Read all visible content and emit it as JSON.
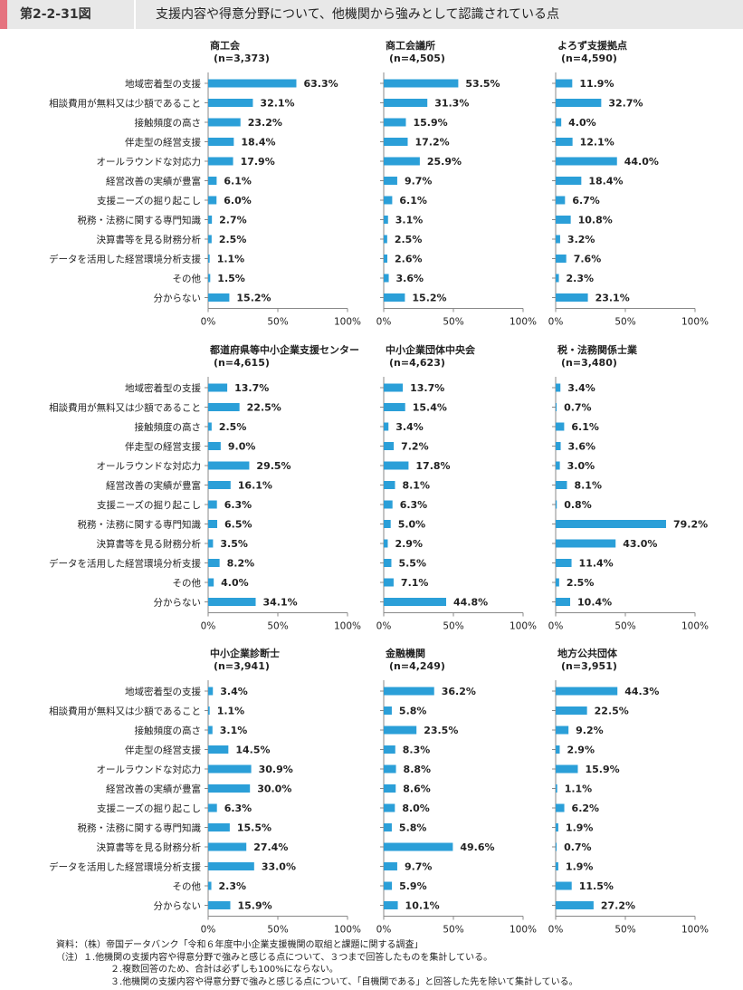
{
  "figure": {
    "number": "第2-2-31図",
    "title": "支援内容や得意分野について、他機関から強みとして認識されている点",
    "accent_color": "#e5737f",
    "bar_color": "#2b9fd8"
  },
  "categories": [
    "地域密着型の支援",
    "相談費用が無料又は少額であること",
    "接触頻度の高さ",
    "伴走型の経営支援",
    "オールラウンドな対応力",
    "経営改善の実績が豊富",
    "支援ニーズの掘り起こし",
    "税務・法務に関する専門知識",
    "決算書等を見る財務分析",
    "データを活用した経営環境分析支援",
    "その他",
    "分からない"
  ],
  "chart_data": [
    {
      "type": "bar",
      "orientation": "horizontal",
      "title": "商工会",
      "n": "(n=3,373)",
      "values": [
        63.3,
        32.1,
        23.2,
        18.4,
        17.9,
        6.1,
        6.0,
        2.7,
        2.5,
        1.1,
        1.5,
        15.2
      ],
      "labels": [
        "63.3%",
        "32.1%",
        "23.2%",
        "18.4%",
        "17.9%",
        "6.1%",
        "6.0%",
        "2.7%",
        "2.5%",
        "1.1%",
        "1.5%",
        "15.2%"
      ],
      "xlim": [
        0,
        100
      ],
      "ticks": [
        "0%",
        "50%",
        "100%"
      ]
    },
    {
      "type": "bar",
      "orientation": "horizontal",
      "title": "商工会議所",
      "n": "(n=4,505)",
      "values": [
        53.5,
        31.3,
        15.9,
        17.2,
        25.9,
        9.7,
        6.1,
        3.1,
        2.5,
        2.6,
        3.6,
        15.2
      ],
      "labels": [
        "53.5%",
        "31.3%",
        "15.9%",
        "17.2%",
        "25.9%",
        "9.7%",
        "6.1%",
        "3.1%",
        "2.5%",
        "2.6%",
        "3.6%",
        "15.2%"
      ],
      "xlim": [
        0,
        100
      ],
      "ticks": [
        "0%",
        "50%",
        "100%"
      ]
    },
    {
      "type": "bar",
      "orientation": "horizontal",
      "title": "よろず支援拠点",
      "n": "(n=4,590)",
      "values": [
        11.9,
        32.7,
        4.0,
        12.1,
        44.0,
        18.4,
        6.7,
        10.8,
        3.2,
        7.6,
        2.3,
        23.1
      ],
      "labels": [
        "11.9%",
        "32.7%",
        "4.0%",
        "12.1%",
        "44.0%",
        "18.4%",
        "6.7%",
        "10.8%",
        "3.2%",
        "7.6%",
        "2.3%",
        "23.1%"
      ],
      "xlim": [
        0,
        100
      ],
      "ticks": [
        "0%",
        "50%",
        "100%"
      ]
    },
    {
      "type": "bar",
      "orientation": "horizontal",
      "title": "都道府県等中小企業支援センター",
      "n": "(n=4,615)",
      "values": [
        13.7,
        22.5,
        2.5,
        9.0,
        29.5,
        16.1,
        6.3,
        6.5,
        3.5,
        8.2,
        4.0,
        34.1
      ],
      "labels": [
        "13.7%",
        "22.5%",
        "2.5%",
        "9.0%",
        "29.5%",
        "16.1%",
        "6.3%",
        "6.5%",
        "3.5%",
        "8.2%",
        "4.0%",
        "34.1%"
      ],
      "xlim": [
        0,
        100
      ],
      "ticks": [
        "0%",
        "50%",
        "100%"
      ]
    },
    {
      "type": "bar",
      "orientation": "horizontal",
      "title": "中小企業団体中央会",
      "n": "(n=4,623)",
      "values": [
        13.7,
        15.4,
        3.4,
        7.2,
        17.8,
        8.1,
        6.3,
        5.0,
        2.9,
        5.5,
        7.1,
        44.8
      ],
      "labels": [
        "13.7%",
        "15.4%",
        "3.4%",
        "7.2%",
        "17.8%",
        "8.1%",
        "6.3%",
        "5.0%",
        "2.9%",
        "5.5%",
        "7.1%",
        "44.8%"
      ],
      "xlim": [
        0,
        100
      ],
      "ticks": [
        "0%",
        "50%",
        "100%"
      ]
    },
    {
      "type": "bar",
      "orientation": "horizontal",
      "title": "税・法務関係士業",
      "n": "(n=3,480)",
      "values": [
        3.4,
        0.7,
        6.1,
        3.6,
        3.0,
        8.1,
        0.8,
        79.2,
        43.0,
        11.4,
        2.5,
        10.4
      ],
      "labels": [
        "3.4%",
        "0.7%",
        "6.1%",
        "3.6%",
        "3.0%",
        "8.1%",
        "0.8%",
        "79.2%",
        "43.0%",
        "11.4%",
        "2.5%",
        "10.4%"
      ],
      "xlim": [
        0,
        100
      ],
      "ticks": [
        "0%",
        "50%",
        "100%"
      ]
    },
    {
      "type": "bar",
      "orientation": "horizontal",
      "title": "中小企業診断士",
      "n": "(n=3,941)",
      "values": [
        3.4,
        1.1,
        3.1,
        14.5,
        30.9,
        30.0,
        6.3,
        15.5,
        27.4,
        33.0,
        2.3,
        15.9
      ],
      "labels": [
        "3.4%",
        "1.1%",
        "3.1%",
        "14.5%",
        "30.9%",
        "30.0%",
        "6.3%",
        "15.5%",
        "27.4%",
        "33.0%",
        "2.3%",
        "15.9%"
      ],
      "xlim": [
        0,
        100
      ],
      "ticks": [
        "0%",
        "50%",
        "100%"
      ]
    },
    {
      "type": "bar",
      "orientation": "horizontal",
      "title": "金融機関",
      "n": "(n=4,249)",
      "values": [
        36.2,
        5.8,
        23.5,
        8.3,
        8.8,
        8.6,
        8.0,
        5.8,
        49.6,
        9.7,
        5.9,
        10.1
      ],
      "labels": [
        "36.2%",
        "5.8%",
        "23.5%",
        "8.3%",
        "8.8%",
        "8.6%",
        "8.0%",
        "5.8%",
        "49.6%",
        "9.7%",
        "5.9%",
        "10.1%"
      ],
      "xlim": [
        0,
        100
      ],
      "ticks": [
        "0%",
        "50%",
        "100%"
      ]
    },
    {
      "type": "bar",
      "orientation": "horizontal",
      "title": "地方公共団体",
      "n": "(n=3,951)",
      "values": [
        44.3,
        22.5,
        9.2,
        2.9,
        15.9,
        1.1,
        6.2,
        1.9,
        0.7,
        1.9,
        11.5,
        27.2
      ],
      "labels": [
        "44.3%",
        "22.5%",
        "9.2%",
        "2.9%",
        "15.9%",
        "1.1%",
        "6.2%",
        "1.9%",
        "0.7%",
        "1.9%",
        "11.5%",
        "27.2%"
      ],
      "xlim": [
        0,
        100
      ],
      "ticks": [
        "0%",
        "50%",
        "100%"
      ]
    }
  ],
  "notes": {
    "source": "資料：（株）帝国データバンク「令和６年度中小企業支援機関の取組と課題に関する調査」",
    "note1": "（注）１.他機関の支援内容や得意分野で強みと感じる点について、３つまで回答したものを集計している。",
    "note2": "２.複数回答のため、合計は必ずしも100%にならない。",
    "note3": "３.他機関の支援内容や得意分野で強みと感じる点について、「自機関である」と回答した先を除いて集計している。"
  }
}
